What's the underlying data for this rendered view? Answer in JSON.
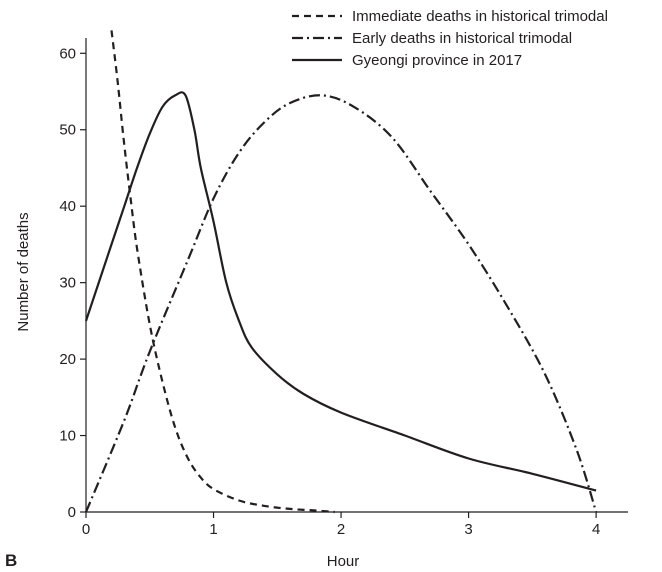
{
  "panel_label": "B",
  "chart_data": {
    "type": "line",
    "xlabel": "Hour",
    "ylabel": "Number of deaths",
    "xlim": [
      0,
      4.25
    ],
    "ylim": [
      0,
      62
    ],
    "xticks": [
      0,
      1,
      2,
      3,
      4
    ],
    "yticks": [
      0,
      10,
      20,
      30,
      40,
      50,
      60
    ],
    "grid": false,
    "legend_position": "top-right",
    "series": [
      {
        "name": "Immediate deaths in historical trimodal",
        "line_style": "dashed",
        "color": "#231f20",
        "points": [
          [
            0.2,
            63
          ],
          [
            0.25,
            56
          ],
          [
            0.3,
            48
          ],
          [
            0.35,
            41
          ],
          [
            0.4,
            34.5
          ],
          [
            0.5,
            24.5
          ],
          [
            0.6,
            17
          ],
          [
            0.7,
            11
          ],
          [
            0.8,
            7
          ],
          [
            0.9,
            4.5
          ],
          [
            1.0,
            3
          ],
          [
            1.2,
            1.5
          ],
          [
            1.4,
            0.8
          ],
          [
            1.6,
            0.4
          ],
          [
            1.8,
            0.2
          ],
          [
            1.95,
            0
          ]
        ]
      },
      {
        "name": "Early deaths in historical trimodal",
        "line_style": "dash-dot",
        "color": "#231f20",
        "points": [
          [
            0,
            0
          ],
          [
            0.3,
            12
          ],
          [
            0.5,
            21
          ],
          [
            0.8,
            33
          ],
          [
            1.0,
            41
          ],
          [
            1.2,
            47
          ],
          [
            1.4,
            51
          ],
          [
            1.6,
            53.5
          ],
          [
            1.85,
            54.5
          ],
          [
            2.1,
            53
          ],
          [
            2.4,
            49
          ],
          [
            2.7,
            42
          ],
          [
            3.0,
            35
          ],
          [
            3.3,
            27
          ],
          [
            3.6,
            18
          ],
          [
            3.85,
            8
          ],
          [
            4.0,
            0
          ]
        ]
      },
      {
        "name": "Gyeongi province in 2017",
        "line_style": "solid",
        "color": "#231f20",
        "points": [
          [
            0,
            25
          ],
          [
            0.2,
            35
          ],
          [
            0.3,
            40
          ],
          [
            0.4,
            45
          ],
          [
            0.5,
            49.5
          ],
          [
            0.6,
            53
          ],
          [
            0.7,
            54.5
          ],
          [
            0.78,
            54.5
          ],
          [
            0.85,
            50
          ],
          [
            0.9,
            45
          ],
          [
            1.0,
            38
          ],
          [
            1.1,
            30
          ],
          [
            1.2,
            25
          ],
          [
            1.3,
            21.5
          ],
          [
            1.5,
            18
          ],
          [
            1.7,
            15.5
          ],
          [
            2.0,
            13
          ],
          [
            2.5,
            10
          ],
          [
            3.0,
            7
          ],
          [
            3.5,
            5
          ],
          [
            4.0,
            2.8
          ]
        ]
      }
    ]
  }
}
